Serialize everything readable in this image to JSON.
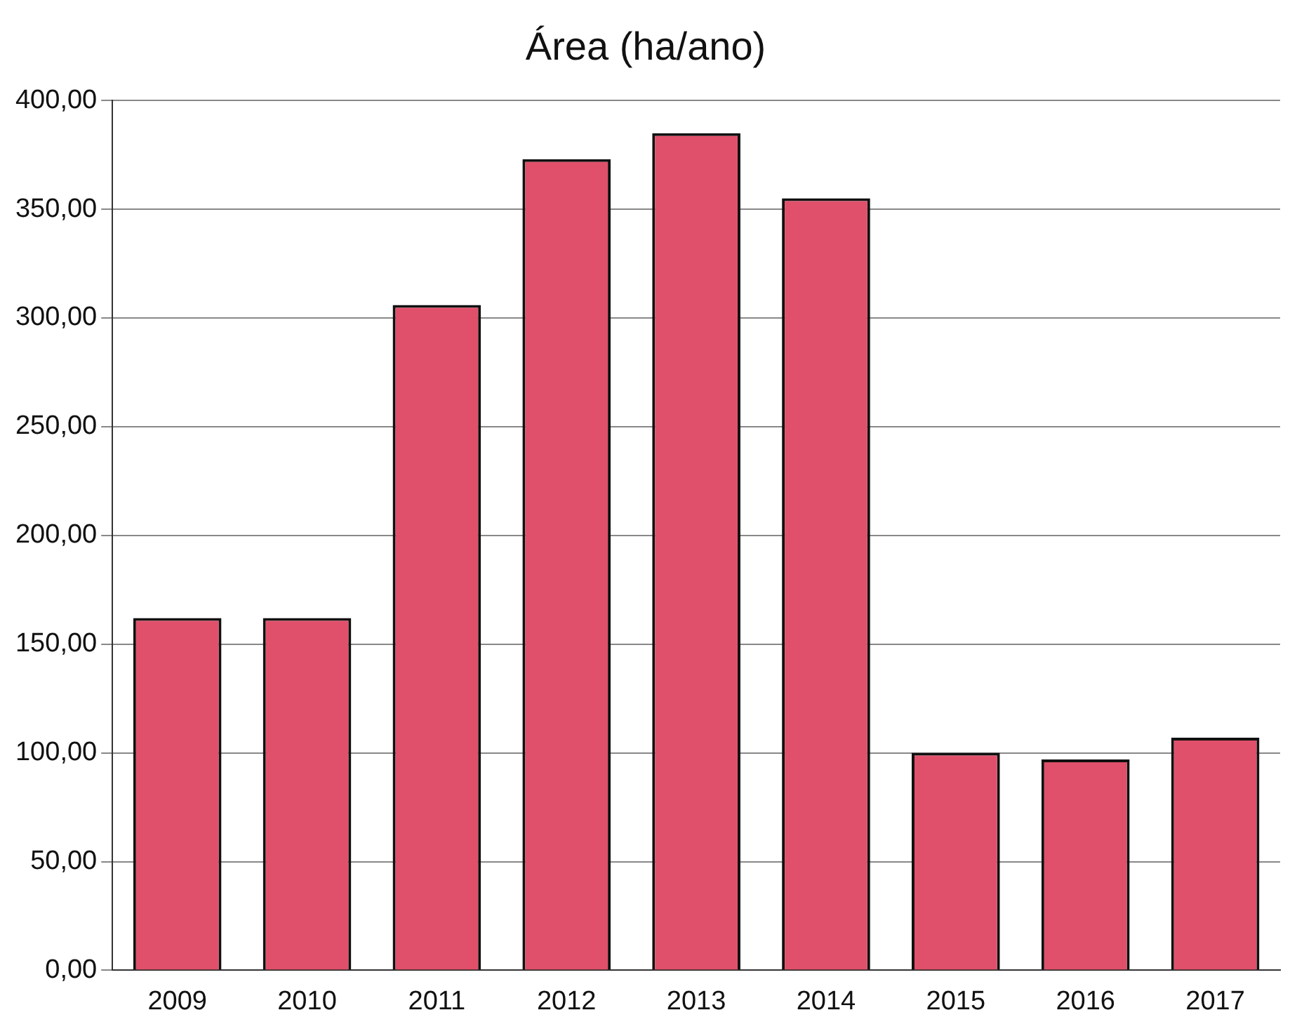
{
  "chart_data": {
    "type": "bar",
    "title": "Área (ha/ano)",
    "categories": [
      "2009",
      "2010",
      "2011",
      "2012",
      "2013",
      "2014",
      "2015",
      "2016",
      "2017"
    ],
    "values": [
      162,
      162,
      306,
      373,
      385,
      355,
      100,
      97,
      107
    ],
    "color": "#e0506a",
    "ylim": [
      0,
      400
    ],
    "yticks": [
      {
        "value": 0,
        "label": "0,00"
      },
      {
        "value": 50,
        "label": "50,00"
      },
      {
        "value": 100,
        "label": "100,00"
      },
      {
        "value": 150,
        "label": "150,00"
      },
      {
        "value": 200,
        "label": "200,00"
      },
      {
        "value": 250,
        "label": "250,00"
      },
      {
        "value": 300,
        "label": "300,00"
      },
      {
        "value": 350,
        "label": "350,00"
      },
      {
        "value": 400,
        "label": "400,00"
      }
    ],
    "grid": "y",
    "legend": false
  }
}
